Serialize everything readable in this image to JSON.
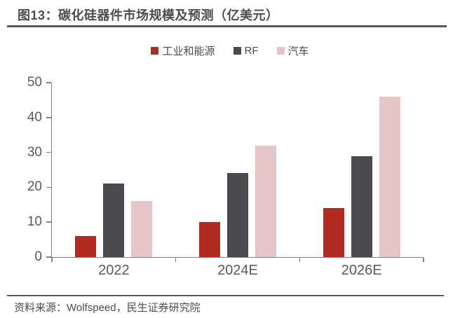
{
  "header": {
    "title": "图13：碳化硅器件市场规模及预测（亿美元）"
  },
  "footer": {
    "source": "资料来源：Wolfspeed，民生证券研究院"
  },
  "colors": {
    "industry_red": "#B22B21",
    "rf_gray": "#4A4A4E",
    "auto_pink": "#E5C6C6",
    "text": "#4C4C4C",
    "rule": "#595959",
    "axis": "#808080"
  },
  "chart_data": {
    "type": "bar",
    "title": "碳化硅器件市场规模及预测（亿美元）",
    "unit": "亿美元",
    "categories": [
      "2022",
      "2024E",
      "2026E"
    ],
    "series": [
      {
        "name": "工业和能源",
        "key": "industry-energy",
        "color": "#B22B21",
        "values": [
          6,
          10,
          14
        ]
      },
      {
        "name": "RF",
        "key": "rf",
        "color": "#4A4A4E",
        "values": [
          21,
          24,
          29
        ]
      },
      {
        "name": "汽车",
        "key": "auto",
        "color": "#E5C6C6",
        "values": [
          16,
          32,
          46
        ]
      }
    ],
    "xlabel": "",
    "ylabel": "",
    "ylim": [
      0,
      50
    ],
    "yticks": [
      0,
      10,
      20,
      30,
      40,
      50
    ],
    "legend_position": "top",
    "grid": false
  }
}
